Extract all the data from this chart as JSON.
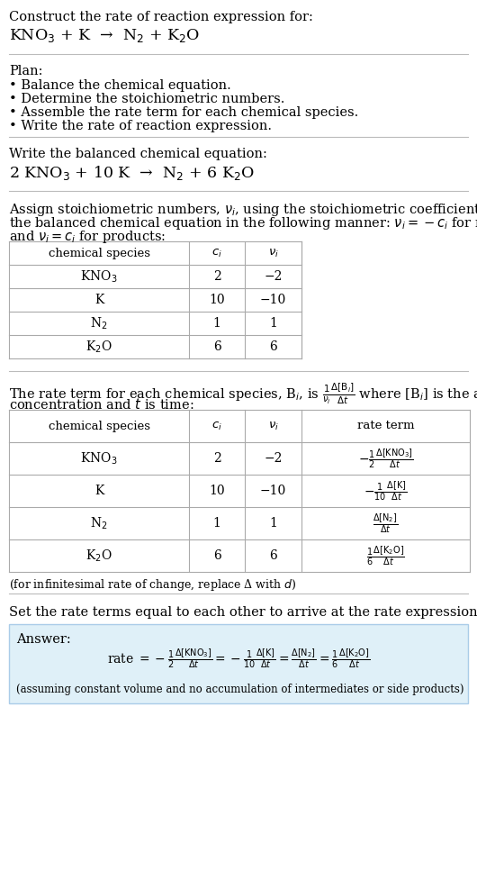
{
  "bg_color": "#ffffff",
  "text_color": "#000000",
  "title_text": "Construct the rate of reaction expression for:",
  "reaction_unbalanced": "KNO$_3$ + K  →  N$_2$ + K$_2$O",
  "plan_header": "Plan:",
  "plan_items": [
    "• Balance the chemical equation.",
    "• Determine the stoichiometric numbers.",
    "• Assemble the rate term for each chemical species.",
    "• Write the rate of reaction expression."
  ],
  "balanced_header": "Write the balanced chemical equation:",
  "balanced_eq": "2 KNO$_3$ + 10 K  →  N$_2$ + 6 K$_2$O",
  "stoich_intro_line1": "Assign stoichiometric numbers, $\\nu_i$, using the stoichiometric coefficients, $c_i$, from",
  "stoich_intro_line2": "the balanced chemical equation in the following manner: $\\nu_i = -c_i$ for reactants",
  "stoich_intro_line3": "and $\\nu_i = c_i$ for products:",
  "table1_headers": [
    "chemical species",
    "$c_i$",
    "$\\nu_i$"
  ],
  "table1_rows": [
    [
      "KNO$_3$",
      "2",
      "−2"
    ],
    [
      "K",
      "10",
      "−10"
    ],
    [
      "N$_2$",
      "1",
      "1"
    ],
    [
      "K$_2$O",
      "6",
      "6"
    ]
  ],
  "rate_term_line1": "The rate term for each chemical species, B$_i$, is $\\frac{1}{\\nu_i}\\frac{\\Delta[\\mathrm{B}_i]}{\\Delta t}$ where [B$_i$] is the amount",
  "rate_term_line2": "concentration and $t$ is time:",
  "table2_headers": [
    "chemical species",
    "$c_i$",
    "$\\nu_i$",
    "rate term"
  ],
  "table2_rows": [
    [
      "KNO$_3$",
      "2",
      "−2",
      "$-\\frac{1}{2}\\frac{\\Delta[\\mathrm{KNO_3}]}{\\Delta t}$"
    ],
    [
      "K",
      "10",
      "−10",
      "$-\\frac{1}{10}\\frac{\\Delta[\\mathrm{K}]}{\\Delta t}$"
    ],
    [
      "N$_2$",
      "1",
      "1",
      "$\\frac{\\Delta[\\mathrm{N_2}]}{\\Delta t}$"
    ],
    [
      "K$_2$O",
      "6",
      "6",
      "$\\frac{1}{6}\\frac{\\Delta[\\mathrm{K_2O}]}{\\Delta t}$"
    ]
  ],
  "infinitesimal_note": "(for infinitesimal rate of change, replace Δ with $d$)",
  "set_equal_text": "Set the rate terms equal to each other to arrive at the rate expression:",
  "answer_label": "Answer:",
  "answer_box_color": "#dff0f8",
  "answer_box_border": "#aacce8",
  "rate_expr_parts": [
    "rate $= -\\frac{1}{2}\\frac{\\Delta[\\mathrm{KNO_3}]}{\\Delta t} = -\\frac{1}{10}\\frac{\\Delta[\\mathrm{K}]}{\\Delta t} = \\frac{\\Delta[\\mathrm{N_2}]}{\\Delta t} = \\frac{1}{6}\\frac{\\Delta[\\mathrm{K_2O}]}{\\Delta t}$"
  ],
  "assuming_note": "(assuming constant volume and no accumulation of intermediates or side products)",
  "fs": 10.5,
  "fs_small": 9.0,
  "fs_title": 10.5,
  "fs_table": 10.0,
  "sep_color": "#bbbbbb",
  "table_line_color": "#aaaaaa"
}
